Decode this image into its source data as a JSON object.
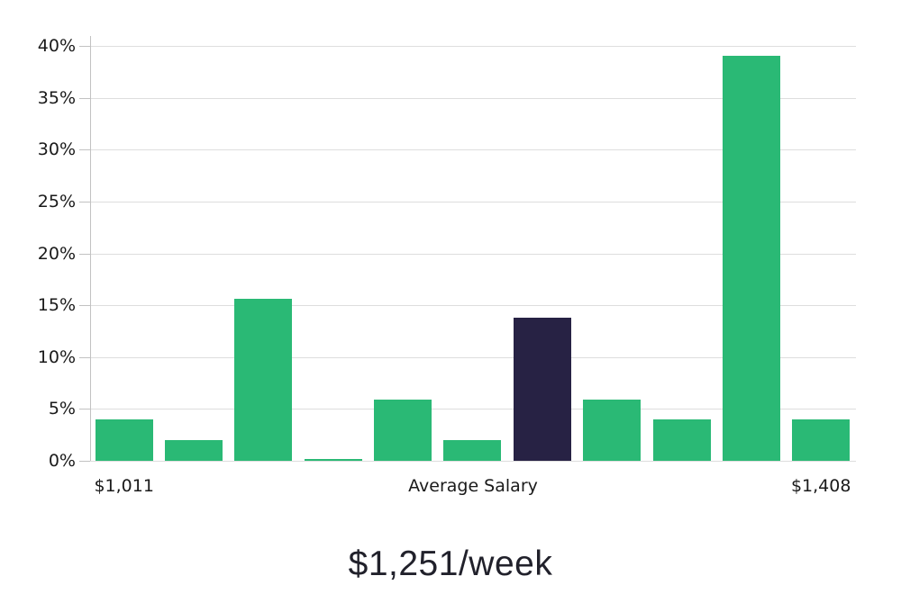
{
  "chart_data": {
    "type": "bar",
    "title": "$1,251/week",
    "values": [
      4.0,
      2.0,
      15.6,
      0.15,
      5.9,
      2.0,
      13.8,
      5.9,
      4.0,
      39.1,
      4.0
    ],
    "highlight_index": 6,
    "ylim": [
      0,
      40
    ],
    "ytick_step": 5,
    "ytick_labels": [
      "0%",
      "5%",
      "10%",
      "15%",
      "20%",
      "25%",
      "30%",
      "35%",
      "40%"
    ],
    "xtick_labels": [
      {
        "label": "$1,011",
        "anchor": "bar",
        "bar_index": 0
      },
      {
        "label": "Average Salary",
        "anchor": "center"
      },
      {
        "label": "$1,408",
        "anchor": "bar",
        "bar_index": 10
      }
    ],
    "grid": "horizontal",
    "legend": "none",
    "colors": {
      "bar": "#2ab975",
      "highlight": "#272244",
      "gridline": "#dedede",
      "axis": "#c2c2c2",
      "text": "#1a1a1a",
      "title_text": "#21212b"
    }
  }
}
